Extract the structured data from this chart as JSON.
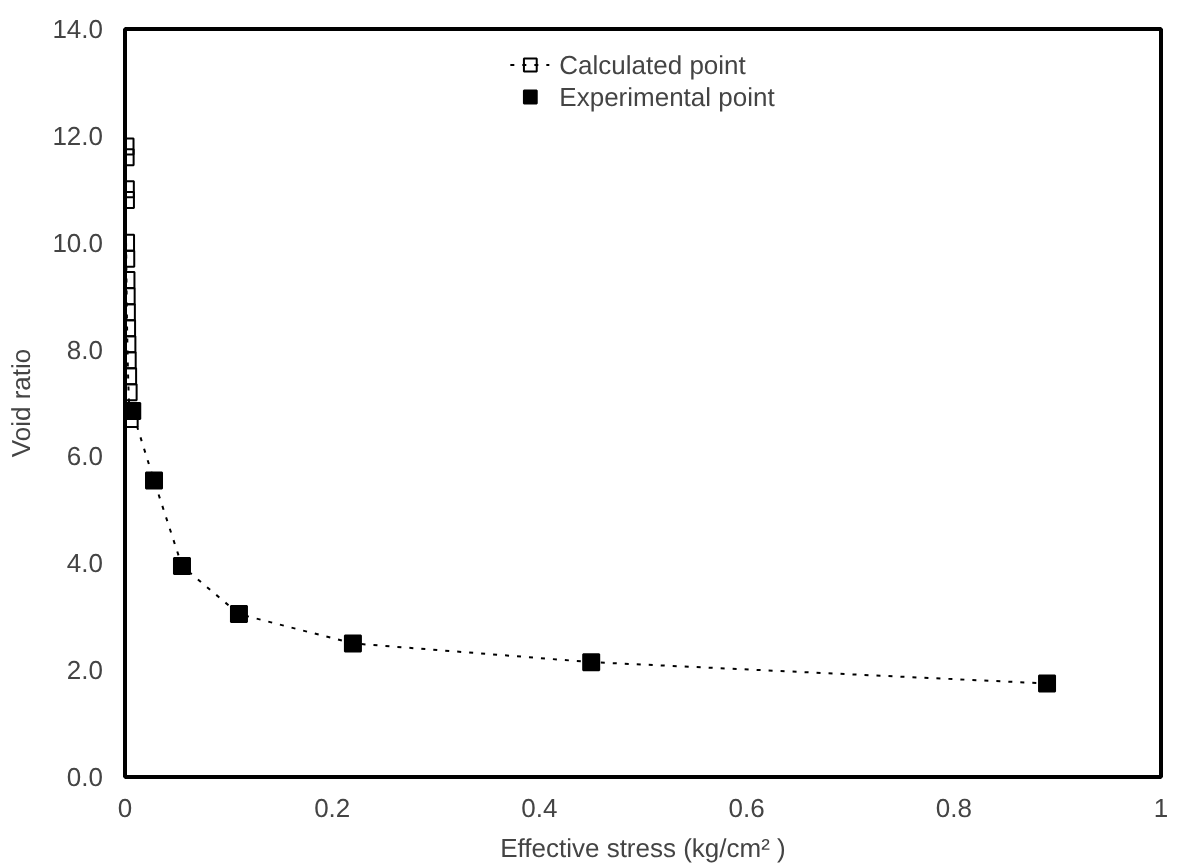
{
  "chart_data": {
    "type": "scatter",
    "xlabel": "Effective stress (kg/cm² )",
    "ylabel": "Void ratio",
    "xlim": [
      0,
      1
    ],
    "ylim": [
      0,
      14
    ],
    "xticks": [
      0,
      0.2,
      0.4,
      0.6,
      0.8,
      1
    ],
    "yticks": [
      {
        "value": 0,
        "label": "0.0"
      },
      {
        "value": 2,
        "label": "2.0"
      },
      {
        "value": 4,
        "label": "4.0"
      },
      {
        "value": 6,
        "label": "6.0"
      },
      {
        "value": 8,
        "label": "8.0"
      },
      {
        "value": 10,
        "label": "10.0"
      },
      {
        "value": 12,
        "label": "12.0"
      },
      {
        "value": 14,
        "label": "14.0"
      }
    ],
    "grid": false,
    "legend": "top",
    "series": [
      {
        "name": "Calculated point",
        "type": "line",
        "color": "#000000",
        "marker": "square",
        "line_style": "dotted",
        "x": [
          0.0005,
          0.0006,
          0.0008,
          0.0009,
          0.001,
          0.0012,
          0.0014,
          0.0016,
          0.0018,
          0.002,
          0.0023,
          0.0026,
          0.003,
          0.0035,
          0.0045
        ],
        "values": [
          11.8,
          11.6,
          11.0,
          10.8,
          10.0,
          9.7,
          9.3,
          9.0,
          8.7,
          8.4,
          8.1,
          7.8,
          7.5,
          7.2,
          6.7
        ]
      },
      {
        "type": "line",
        "color": "#000000",
        "marker": "none",
        "line_style": "dotted",
        "x": [
          0.0045,
          0.007,
          0.028,
          0.055,
          0.11,
          0.22,
          0.45,
          0.89
        ],
        "values": [
          6.7,
          6.85,
          5.55,
          3.95,
          3.05,
          2.5,
          2.15,
          1.75
        ]
      },
      {
        "name": "Experimental point",
        "color": "#000000",
        "marker": "square",
        "x": [
          0.007,
          0.028,
          0.055,
          0.11,
          0.22,
          0.45,
          0.89
        ],
        "values": [
          6.85,
          5.55,
          3.95,
          3.05,
          2.5,
          2.15,
          1.75
        ]
      }
    ]
  }
}
